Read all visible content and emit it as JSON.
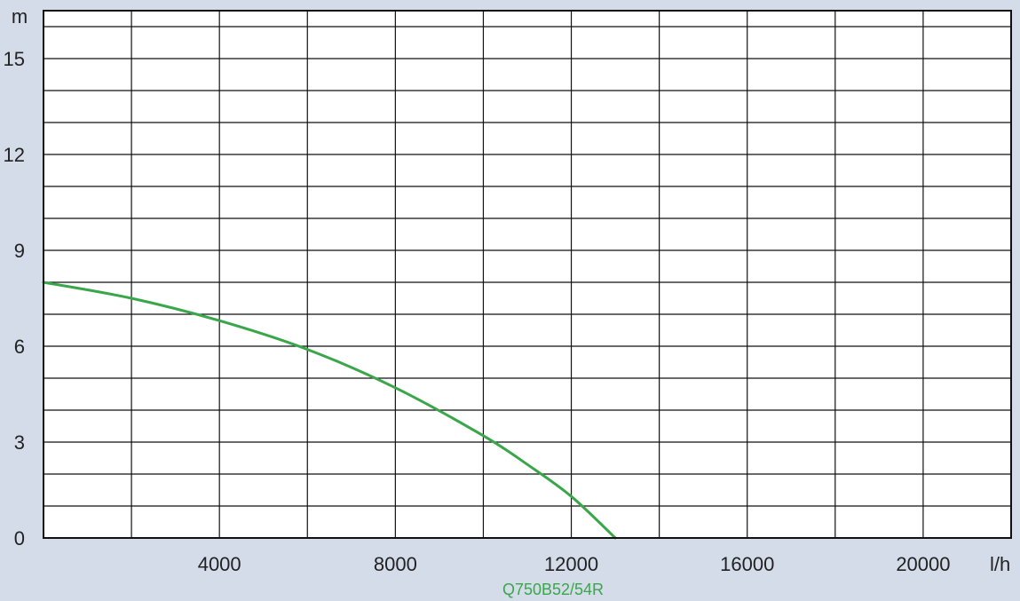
{
  "chart_data": {
    "type": "line",
    "title": "",
    "xlabel": "",
    "ylabel": "",
    "x_unit": "l/h",
    "y_unit": "m",
    "xlim": [
      0,
      22000
    ],
    "ylim": [
      0,
      16.5
    ],
    "x_ticks": [
      4000,
      8000,
      12000,
      16000,
      20000
    ],
    "x_tick_labels": [
      "4000",
      "8000",
      "12000",
      "16000",
      "20000"
    ],
    "y_ticks": [
      0,
      3,
      6,
      9,
      12,
      15
    ],
    "y_tick_labels": [
      "0",
      "3",
      "6",
      "9",
      "12",
      "15"
    ],
    "x_grid_step": 2000,
    "y_grid_step": 1,
    "grid": true,
    "legend": "bottom-center",
    "series": [
      {
        "name": "Q750B52/54R",
        "color": "#3aa64a",
        "points": [
          [
            0,
            8.0
          ],
          [
            2000,
            7.5
          ],
          [
            4000,
            6.8
          ],
          [
            6000,
            5.9
          ],
          [
            8000,
            4.7
          ],
          [
            10000,
            3.2
          ],
          [
            11000,
            2.3
          ],
          [
            12000,
            1.3
          ],
          [
            13000,
            0.0
          ]
        ]
      }
    ]
  }
}
